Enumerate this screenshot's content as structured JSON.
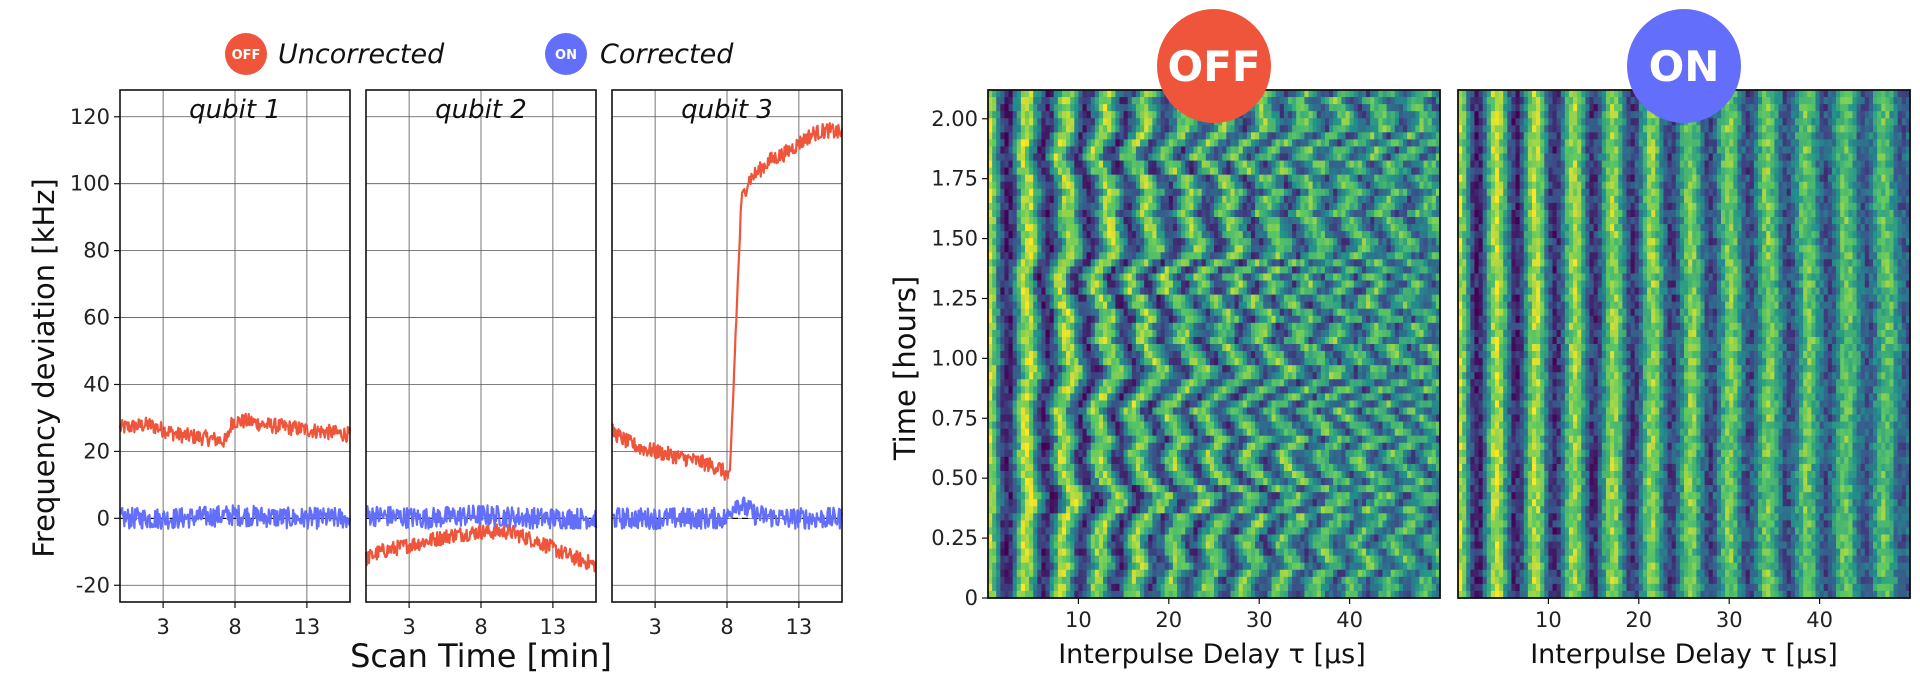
{
  "legend": {
    "items": [
      {
        "badge": "OFF",
        "label": "Uncorrected",
        "color": "#ef553b"
      },
      {
        "badge": "ON",
        "label": "Corrected",
        "color": "#636efa"
      }
    ]
  },
  "chart_data": [
    {
      "type": "line",
      "panels": [
        {
          "title": "qubit 1",
          "series": [
            {
              "name": "Uncorrected",
              "color": "#ef553b",
              "x": [
                0,
                2,
                4,
                6,
                7.4,
                7.8,
                9,
                10,
                12,
                14,
                16
              ],
              "y": [
                27,
                28,
                25,
                24,
                23,
                29,
                29,
                28,
                27,
                26,
                25
              ]
            },
            {
              "name": "Corrected",
              "color": "#636efa",
              "x": [
                0,
                4,
                8,
                12,
                16
              ],
              "y": [
                0,
                0,
                1,
                0,
                0
              ]
            }
          ]
        },
        {
          "title": "qubit 2",
          "series": [
            {
              "name": "Uncorrected",
              "color": "#ef553b",
              "x": [
                0,
                1,
                2,
                4,
                6,
                8,
                10,
                12,
                14,
                16
              ],
              "y": [
                -12,
                -10,
                -9,
                -7,
                -5,
                -4,
                -4,
                -7,
                -11,
                -14
              ]
            },
            {
              "name": "Corrected",
              "color": "#636efa",
              "x": [
                0,
                4,
                8,
                12,
                16
              ],
              "y": [
                1,
                0,
                1,
                0,
                0
              ]
            }
          ]
        },
        {
          "title": "qubit 3",
          "series": [
            {
              "name": "Uncorrected",
              "color": "#ef553b",
              "x": [
                0,
                1,
                2,
                4,
                6,
                7.5,
                8.2,
                8.6,
                9,
                9.5,
                10,
                11,
                12,
                13,
                14,
                15,
                16
              ],
              "y": [
                26,
                23,
                21,
                19,
                17,
                15,
                12,
                55,
                95,
                101,
                103,
                107,
                109,
                112,
                115,
                116,
                115
              ]
            },
            {
              "name": "Corrected",
              "color": "#636efa",
              "x": [
                0,
                4,
                8,
                8.6,
                10,
                12,
                16
              ],
              "y": [
                0,
                0,
                0,
                5,
                1,
                0,
                0
              ]
            }
          ]
        }
      ],
      "xticks": [
        3,
        8,
        13
      ],
      "xlim": [
        0,
        16
      ],
      "yticks": [
        -20,
        0,
        20,
        40,
        60,
        80,
        100,
        120
      ],
      "ylim": [
        -25,
        128
      ],
      "xlabel": "Scan Time [min]",
      "ylabel": "Frequency deviation [kHz]"
    },
    {
      "type": "heatmap",
      "panels": [
        {
          "badge": "OFF",
          "badge_color": "#ef553b",
          "corrected": false
        },
        {
          "badge": "ON",
          "badge_color": "#636efa",
          "corrected": true
        }
      ],
      "xlabel": "Interpulse Delay τ [μs]",
      "ylabel": "Time [hours]",
      "xticks": [
        "10",
        "20",
        "30",
        "40"
      ],
      "yticks": [
        "0",
        "0.25",
        "0.50",
        "0.75",
        "1.00",
        "1.25",
        "1.50",
        "1.75",
        "2.00"
      ],
      "xlim": [
        0,
        50
      ],
      "ylim": [
        0,
        2.12
      ]
    }
  ]
}
